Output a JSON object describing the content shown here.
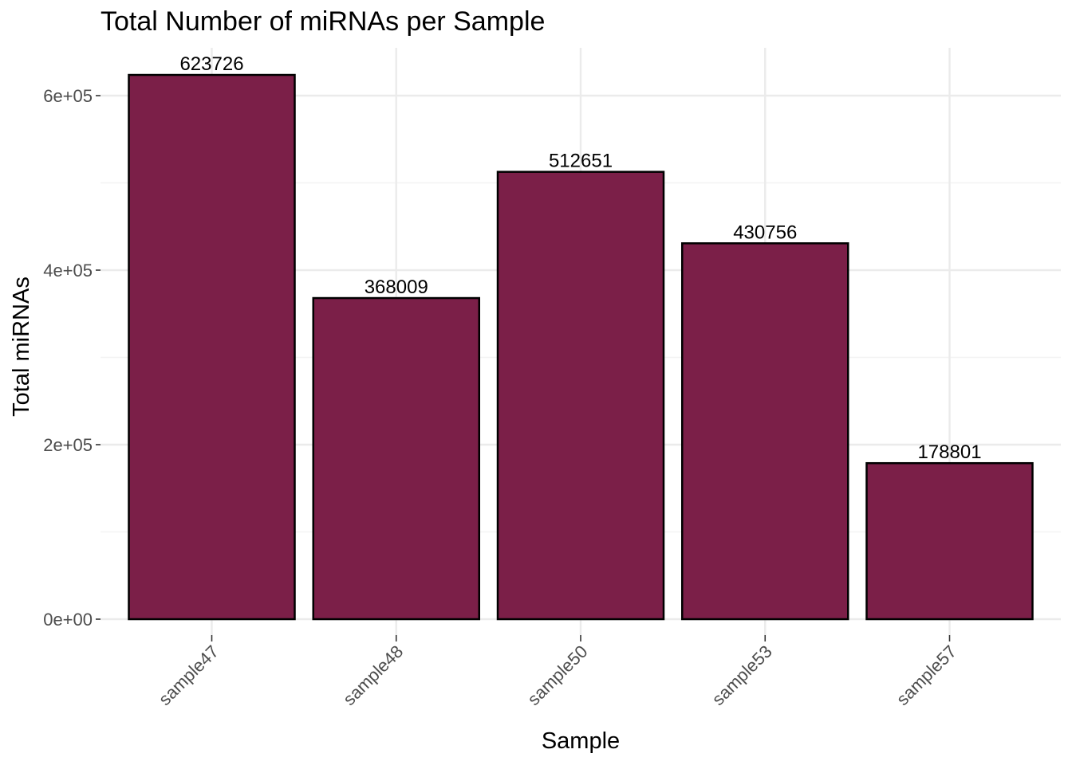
{
  "chart_data": {
    "type": "bar",
    "title": "Total Number of miRNAs per Sample",
    "xlabel": "Sample",
    "ylabel": "Total miRNAs",
    "categories": [
      "sample47",
      "sample48",
      "sample50",
      "sample53",
      "sample57"
    ],
    "values": [
      623726,
      368009,
      512651,
      430756,
      178801
    ],
    "data_labels": [
      "623726",
      "368009",
      "512651",
      "430756",
      "178801"
    ],
    "ylim": [
      0,
      650000
    ],
    "yticks": [
      0,
      200000,
      400000,
      600000
    ],
    "ytick_labels": [
      "0e+00",
      "2e+05",
      "4e+05",
      "6e+05"
    ],
    "grid": true,
    "legend": "none",
    "colors": {
      "bar_fill": "#7b1f48",
      "bar_stroke": "#000000",
      "grid_major": "#ebebeb",
      "grid_minor": "#f3f3f3",
      "tick_text": "#4d4d4d"
    }
  }
}
